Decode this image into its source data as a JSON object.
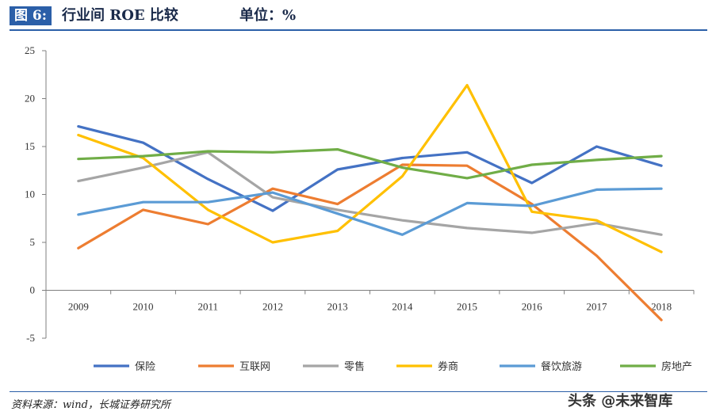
{
  "header": {
    "fig_label": "图 6:",
    "title": "行业间 ROE 比较",
    "unit": "单位：%"
  },
  "source": "资料来源：wind，长城证券研究所",
  "watermark": "头条 @未来智库",
  "colors": {
    "accent": "#2b5fa8",
    "axis": "#7f7f7f"
  },
  "chart_data": {
    "type": "line",
    "title": "",
    "xlabel": "",
    "ylabel": "",
    "categories": [
      "2009",
      "2010",
      "2011",
      "2012",
      "2013",
      "2014",
      "2015",
      "2016",
      "2017",
      "2018"
    ],
    "ylim": [
      -5,
      25
    ],
    "yticks": [
      -5,
      0,
      5,
      10,
      15,
      20,
      25
    ],
    "grid": false,
    "legend_position": "bottom",
    "series": [
      {
        "name": "保险",
        "color": "#4472c4",
        "values": [
          17.1,
          15.4,
          11.6,
          8.3,
          12.6,
          13.8,
          14.4,
          11.2,
          15.0,
          13.0
        ]
      },
      {
        "name": "互联网",
        "color": "#ed7d31",
        "values": [
          4.4,
          8.4,
          6.9,
          10.6,
          9.0,
          13.1,
          13.0,
          9.0,
          3.6,
          -3.1
        ]
      },
      {
        "name": "零售",
        "color": "#a5a5a5",
        "values": [
          11.4,
          12.8,
          14.4,
          9.7,
          8.4,
          7.3,
          6.5,
          6.0,
          7.0,
          5.8
        ]
      },
      {
        "name": "券商",
        "color": "#ffc000",
        "values": [
          16.2,
          13.8,
          8.4,
          5.0,
          6.2,
          11.9,
          21.4,
          8.2,
          7.3,
          4.0
        ]
      },
      {
        "name": "餐饮旅游",
        "color": "#5b9bd5",
        "values": [
          7.9,
          9.2,
          9.2,
          10.2,
          8.0,
          5.8,
          9.1,
          8.8,
          10.5,
          10.6
        ]
      },
      {
        "name": "房地产",
        "color": "#70ad47",
        "values": [
          13.7,
          14.0,
          14.5,
          14.4,
          14.7,
          12.8,
          11.7,
          13.1,
          13.6,
          14.0
        ]
      }
    ]
  }
}
